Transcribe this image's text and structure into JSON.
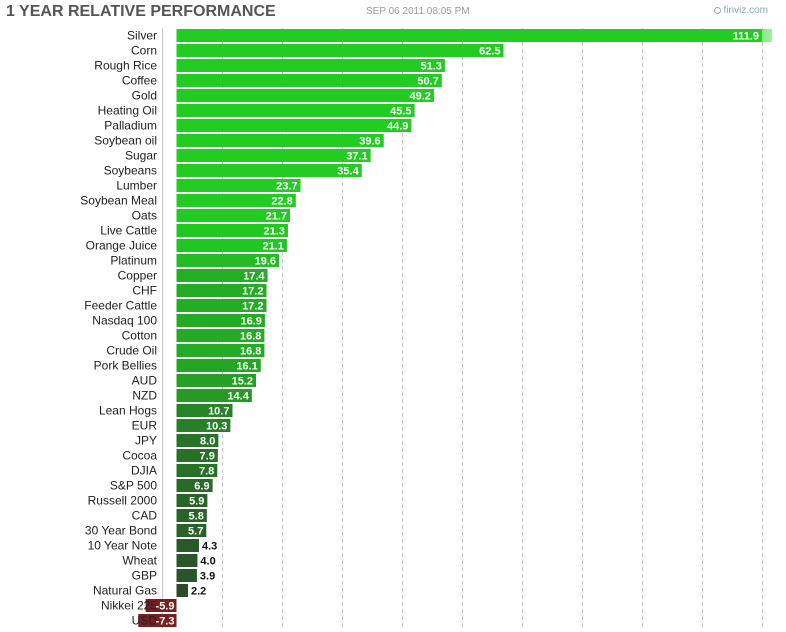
{
  "header": {
    "title": "1 YEAR RELATIVE PERFORMANCE",
    "date": "SEP 06 2011 08:05 PM",
    "source": "finviz.com"
  },
  "chart_data": {
    "type": "bar",
    "orientation": "horizontal",
    "title": "1 YEAR RELATIVE PERFORMANCE",
    "xlabel": "",
    "ylabel": "",
    "grid": true,
    "xlim": [
      -7.3,
      111.9
    ],
    "categories": [
      "Silver",
      "Corn",
      "Rough Rice",
      "Coffee",
      "Gold",
      "Heating Oil",
      "Palladium",
      "Soybean oil",
      "Sugar",
      "Soybeans",
      "Lumber",
      "Soybean Meal",
      "Oats",
      "Live Cattle",
      "Orange Juice",
      "Platinum",
      "Copper",
      "CHF",
      "Feeder Cattle",
      "Nasdaq 100",
      "Cotton",
      "Crude Oil",
      "Pork Bellies",
      "AUD",
      "NZD",
      "Lean Hogs",
      "EUR",
      "JPY",
      "Cocoa",
      "DJIA",
      "S&P 500",
      "Russell 2000",
      "CAD",
      "30 Year Bond",
      "10 Year Note",
      "Wheat",
      "GBP",
      "Natural Gas",
      "Nikkei 225",
      "USD"
    ],
    "values": [
      111.9,
      62.5,
      51.3,
      50.7,
      49.2,
      45.5,
      44.9,
      39.6,
      37.1,
      35.4,
      23.7,
      22.8,
      21.7,
      21.3,
      21.1,
      19.6,
      17.4,
      17.2,
      17.2,
      16.9,
      16.8,
      16.8,
      16.1,
      15.2,
      14.4,
      10.7,
      10.3,
      8.0,
      7.9,
      7.8,
      6.9,
      5.9,
      5.8,
      5.7,
      4.3,
      4.0,
      3.9,
      2.2,
      -5.9,
      -7.3
    ],
    "value_labels": [
      "111.9",
      "62.5",
      "51.3",
      "50.7",
      "49.2",
      "45.5",
      "44.9",
      "39.6",
      "37.1",
      "35.4",
      "23.7",
      "22.8",
      "21.7",
      "21.3",
      "21.1",
      "19.6",
      "17.4",
      "17.2",
      "17.2",
      "16.9",
      "16.8",
      "16.8",
      "16.1",
      "15.2",
      "14.4",
      "10.7",
      "10.3",
      "8.0",
      "7.9",
      "7.8",
      "6.9",
      "5.9",
      "5.8",
      "5.7",
      "4.3",
      "4.0",
      "3.9",
      "2.2",
      "-5.9",
      "-7.3"
    ],
    "colors": {
      "positive_high": "#22cc22",
      "positive_low": "#2a4a2a",
      "negative": "#7a1f1f",
      "grid": "#c8c8c8"
    }
  }
}
